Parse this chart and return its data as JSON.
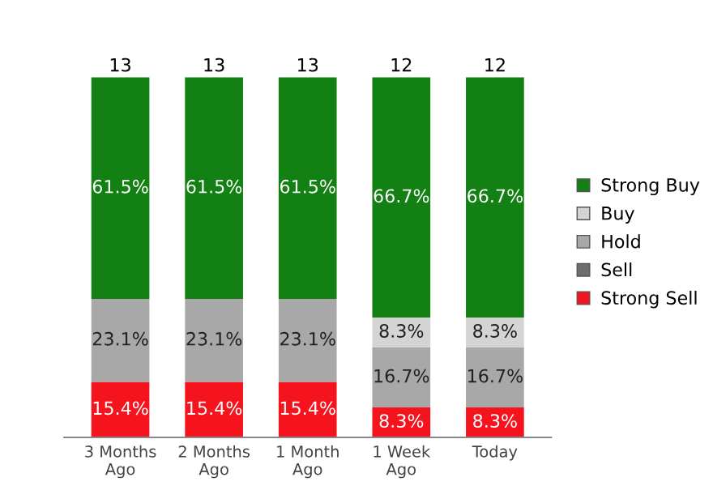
{
  "chart_data": {
    "type": "bar",
    "stacked": true,
    "categories": [
      "3 Months\nAgo",
      "2 Months\nAgo",
      "1 Month\nAgo",
      "1 Week\nAgo",
      "Today"
    ],
    "series": [
      {
        "name": "Strong Sell",
        "color": "#f5141e",
        "values": [
          15.4,
          15.4,
          15.4,
          8.3,
          8.3
        ],
        "value_labels": [
          "15.4%",
          "15.4%",
          "15.4%",
          "8.3%",
          "8.3%"
        ]
      },
      {
        "name": "Sell",
        "color": "#6e6e6e",
        "values": [
          null,
          null,
          null,
          null,
          null
        ],
        "value_labels": [
          null,
          null,
          null,
          null,
          null
        ]
      },
      {
        "name": "Hold",
        "color": "#a8a8a8",
        "values": [
          23.1,
          23.1,
          23.1,
          16.7,
          16.7
        ],
        "value_labels": [
          "23.1%",
          "23.1%",
          "23.1%",
          "16.7%",
          "16.7%"
        ]
      },
      {
        "name": "Buy",
        "color": "#d4d4d4",
        "values": [
          null,
          null,
          null,
          8.3,
          8.3
        ],
        "value_labels": [
          null,
          null,
          null,
          "8.3%",
          "8.3%"
        ]
      },
      {
        "name": "Strong Buy",
        "color": "#128012",
        "values": [
          61.5,
          61.5,
          61.5,
          66.7,
          66.7
        ],
        "value_labels": [
          "61.5%",
          "61.5%",
          "61.5%",
          "66.7%",
          "66.7%"
        ]
      }
    ],
    "annotations": [
      {
        "text": "13",
        "x": "3 Months\nAgo",
        "y": 100
      },
      {
        "text": "13",
        "x": "2 Months\nAgo",
        "y": 100
      },
      {
        "text": "13",
        "x": "1 Month\nAgo",
        "y": 100
      },
      {
        "text": "12",
        "x": "1 Week\nAgo",
        "y": 100
      },
      {
        "text": "12",
        "x": "Today",
        "y": 100
      }
    ],
    "legend": "right",
    "grid": false
  }
}
